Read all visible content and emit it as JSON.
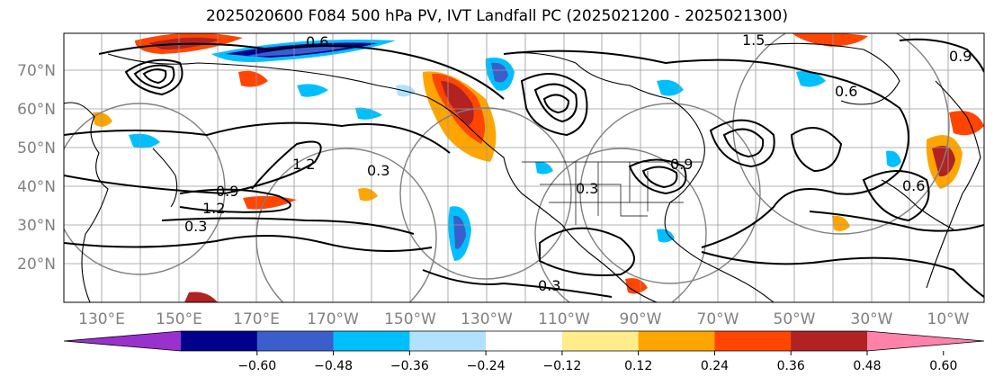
{
  "title": "2025020600 F084 500 hPa PV, IVT Landfall PC (2025021200 - 2025021300)",
  "lat_labels": [
    "70°N",
    "60°N",
    "50°N",
    "40°N",
    "30°N",
    "20°N"
  ],
  "lon_labels": [
    "130°E",
    "150°E",
    "170°E",
    "170°W",
    "150°W",
    "130°W",
    "110°W",
    "90°W",
    "70°W",
    "50°W",
    "30°W",
    "10°W"
  ],
  "colorbar": {
    "ticks": [
      "−0.60",
      "−0.48",
      "−0.36",
      "−0.24",
      "−0.12",
      "0.12",
      "0.24",
      "0.36",
      "0.48",
      "0.60"
    ],
    "colors": [
      "#9932cc",
      "#00008b",
      "#3a5fcd",
      "#00bfff",
      "#b0e2ff",
      "#ffffff",
      "#ffec8b",
      "#ffa500",
      "#ff4500",
      "#b22222",
      "#ff82ab"
    ]
  },
  "contour_labels": [
    "0.6",
    "0.9",
    "1.2",
    "0.3",
    "0.3",
    "1.2",
    "0.9",
    "1.5",
    "0.9",
    "0.6",
    "0.3",
    "0.3",
    "0.6"
  ],
  "chart_data": {
    "type": "map",
    "title": "2025020600 F084 500 hPa PV, IVT Landfall PC (2025021200 - 2025021300)",
    "lat_range": [
      10,
      80
    ],
    "lon_range": [
      115,
      355
    ],
    "shading_levels": [
      -0.6,
      -0.48,
      -0.36,
      -0.24,
      -0.12,
      0.12,
      0.24,
      0.36,
      0.48,
      0.6
    ],
    "contour_levels": [
      0.3,
      0.6,
      0.9,
      1.2,
      1.5
    ]
  }
}
